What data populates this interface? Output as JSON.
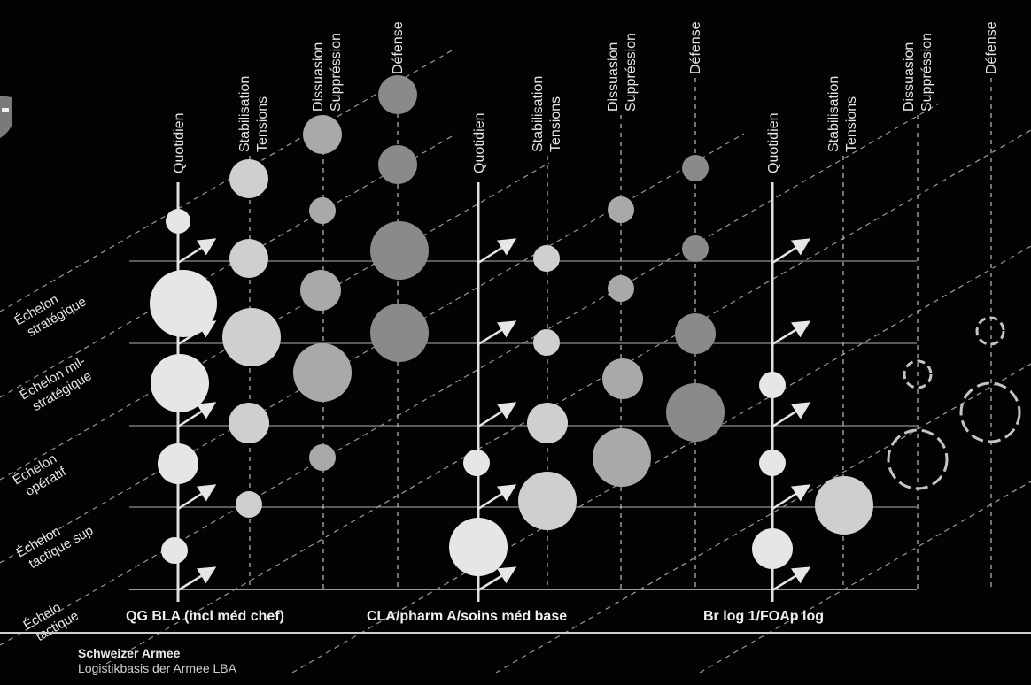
{
  "phases": {
    "quotidien": "Quotidien",
    "stabilisation": [
      "Stabilisation",
      "Tensions"
    ],
    "dissuasion": [
      "Dissuasion",
      "Suppréssion"
    ],
    "defense": "Défense"
  },
  "echelons": [
    [
      "Échelon",
      "stratégique"
    ],
    [
      "Échelon mil-",
      "stratégique"
    ],
    [
      "Échelon",
      "opératif"
    ],
    [
      "Échelon",
      "tactique sup"
    ],
    [
      "Échelo",
      "tactique"
    ]
  ],
  "columns": [
    {
      "title": "QG BLA (incl méd chef)"
    },
    {
      "title": "CLA/pharm A/soins méd base"
    },
    {
      "title": "Br log 1/FOAp log"
    }
  ],
  "footer": {
    "organization": "Schweizer Armee",
    "unit": "Logistikbasis der Armee LBA"
  },
  "colors": {
    "background": "#030303",
    "lines": "#bfbfbf",
    "circle_quotidien": "#e6e6e6",
    "circle_stabilisation": "#cfcfcf",
    "circle_dissuasion": "#a9a9a9",
    "circle_defense": "#8a8a8a"
  }
}
